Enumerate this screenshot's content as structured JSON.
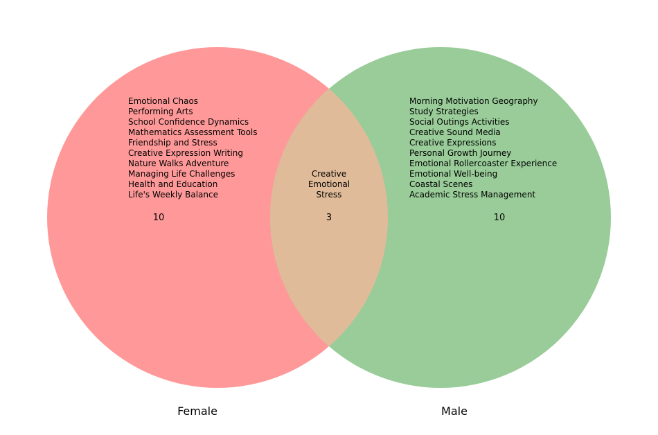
{
  "chart_data": {
    "type": "venn",
    "sets": [
      {
        "name": "Female",
        "color": "#ff9999",
        "count": "10",
        "items": [
          "Emotional Chaos",
          "Performing Arts",
          "School Confidence Dynamics",
          "Mathematics Assessment Tools",
          "Friendship and Stress",
          "Creative Expression Writing",
          "Nature Walks Adventure",
          "Managing Life Challenges",
          "Health and Education",
          "Life's Weekly Balance"
        ]
      },
      {
        "name": "Male",
        "color": "#99cc99",
        "count": "10",
        "items": [
          "Morning Motivation Geography",
          "Study Strategies",
          "Social Outings Activities",
          "Creative Sound Media",
          "Creative Expressions",
          "Personal Growth Journey",
          "Emotional Rollercoaster Experience",
          "Emotional Well-being",
          "Coastal Scenes",
          "Academic Stress Management"
        ]
      }
    ],
    "intersection": {
      "color": "#e0bb99",
      "count": "3",
      "items": [
        "Creative",
        "Emotional",
        "Stress"
      ]
    }
  }
}
